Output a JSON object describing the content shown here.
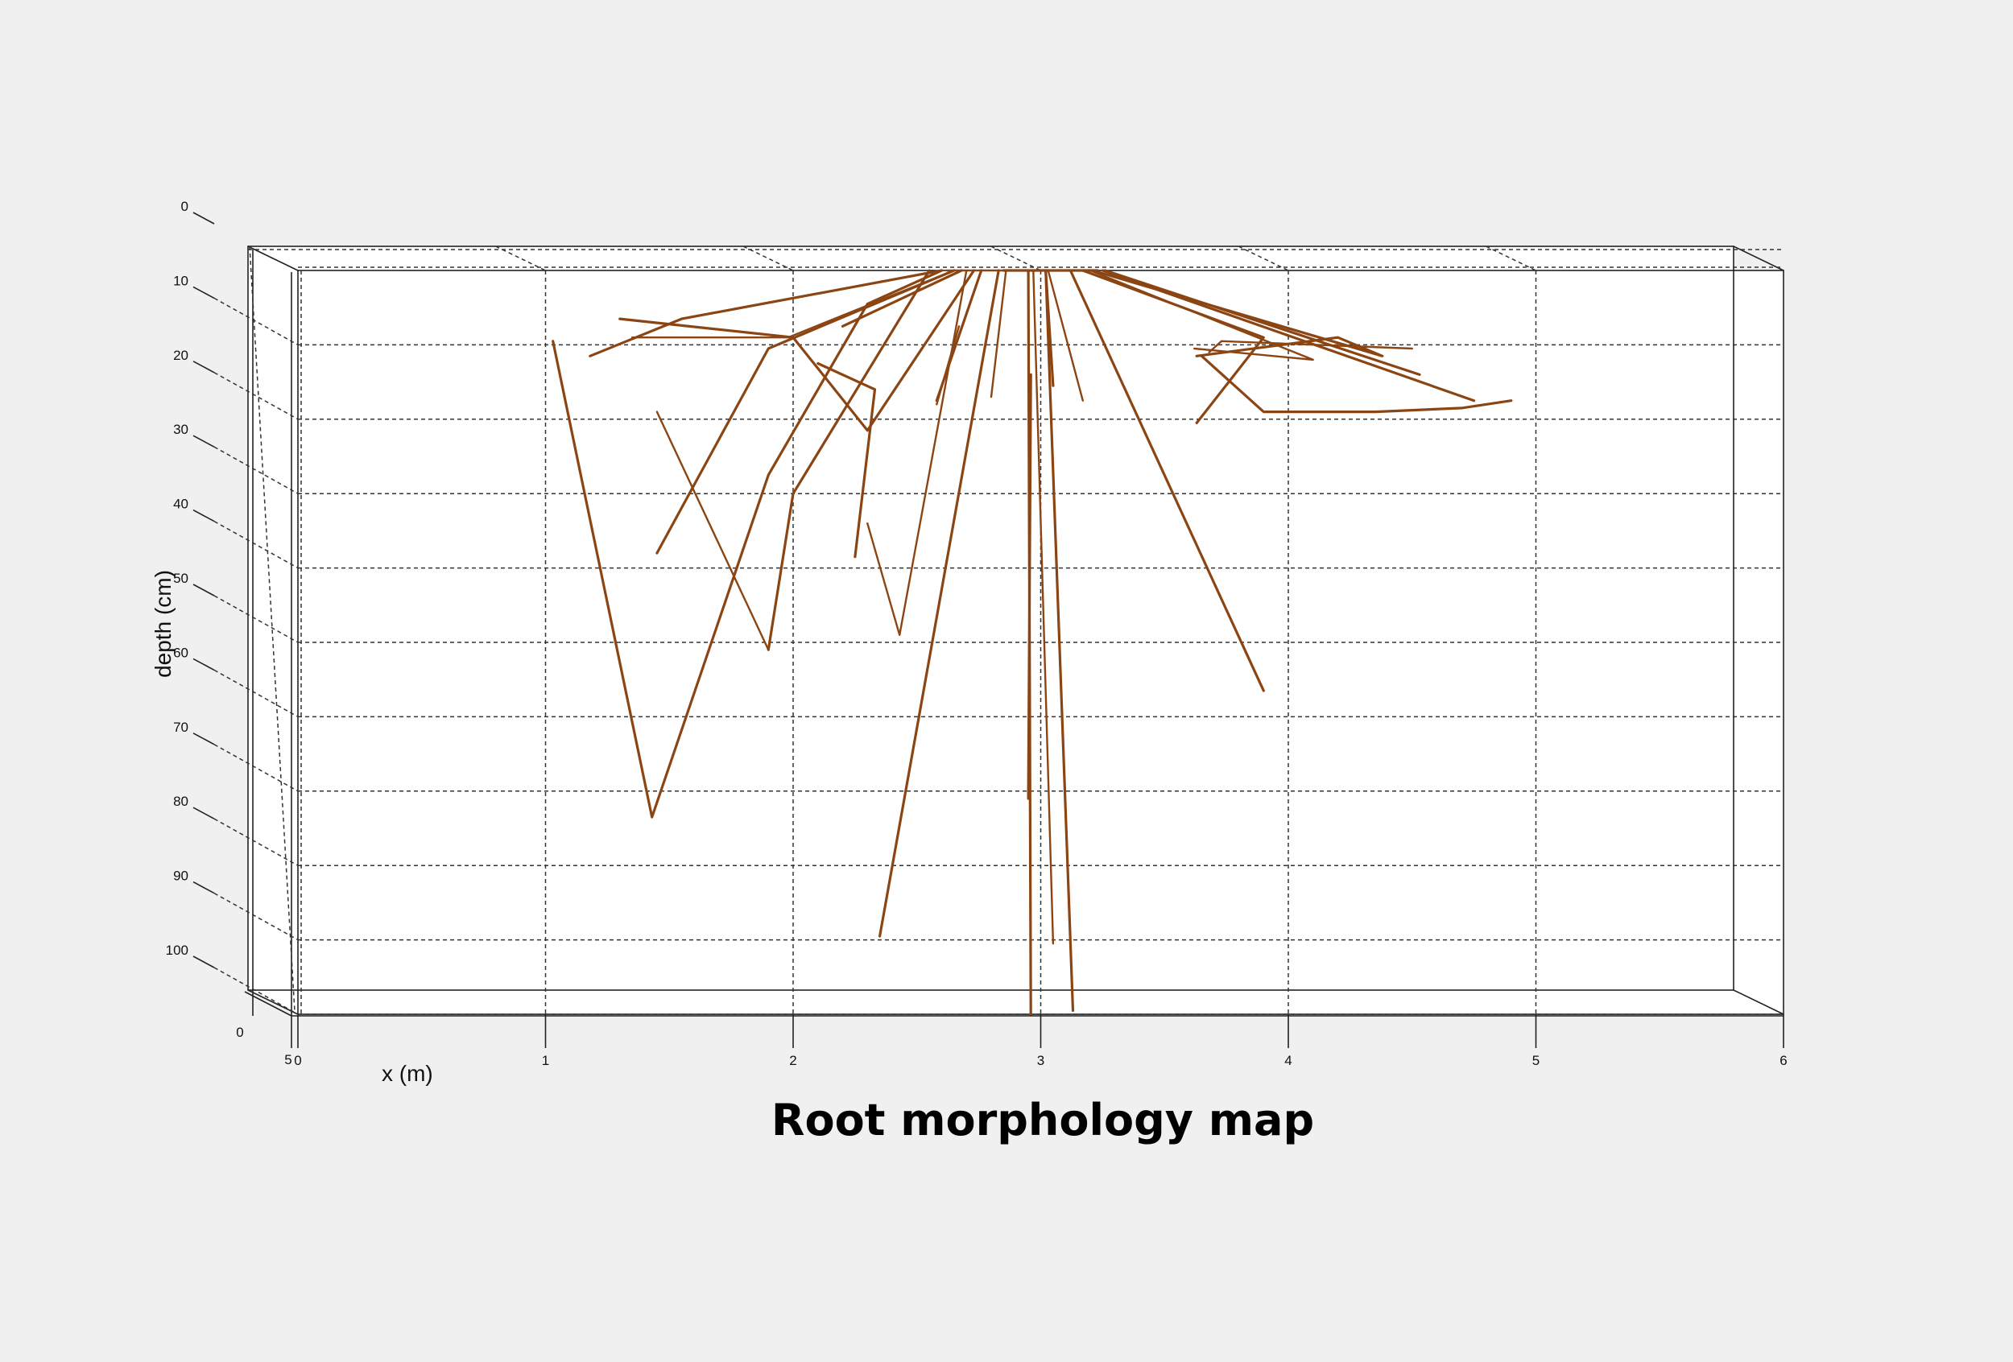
{
  "title": "Root morphology map",
  "chart_data": {
    "type": "line",
    "title": "Root morphology map",
    "xlabel": "x (m)",
    "ylabel": "depth (cm)",
    "xlim": [
      0,
      6
    ],
    "ylim": [
      0,
      100
    ],
    "y_inverted": true,
    "x_ticks": [
      "0",
      "1",
      "2",
      "3",
      "4",
      "5",
      "6"
    ],
    "y_ticks": [
      "0",
      "10",
      "20",
      "30",
      "40",
      "50",
      "60",
      "70",
      "80",
      "90",
      "100"
    ],
    "z_ticks": [
      "0",
      "5"
    ],
    "grid": true,
    "projection": "3d-box",
    "color": "#8b4513",
    "series": [
      {
        "points": [
          [
            1.03,
            9.5
          ],
          [
            1.43,
            73.5
          ],
          [
            1.9,
            27.5
          ],
          [
            2.3,
            4.5
          ],
          [
            2.6,
            0
          ]
        ]
      },
      {
        "points": [
          [
            1.45,
            19
          ],
          [
            1.9,
            51
          ]
        ]
      },
      {
        "points": [
          [
            1.9,
            51
          ],
          [
            2.0,
            30
          ],
          [
            2.55,
            0
          ]
        ]
      },
      {
        "points": [
          [
            1.45,
            38
          ],
          [
            1.9,
            10.5
          ],
          [
            2.65,
            0
          ]
        ]
      },
      {
        "points": [
          [
            2.3,
            34
          ],
          [
            2.43,
            49
          ],
          [
            2.7,
            0
          ]
        ]
      },
      {
        "points": [
          [
            1.3,
            6.5
          ],
          [
            2.0,
            9
          ],
          [
            2.3,
            21.5
          ],
          [
            2.73,
            0
          ]
        ]
      },
      {
        "points": [
          [
            1.18,
            11.5
          ],
          [
            1.55,
            6.5
          ],
          [
            2.6,
            0
          ]
        ]
      },
      {
        "points": [
          [
            1.35,
            9
          ],
          [
            1.98,
            9
          ],
          [
            2.65,
            0
          ]
        ]
      },
      {
        "points": [
          [
            2.1,
            12.5
          ],
          [
            2.33,
            16
          ],
          [
            2.25,
            38.5
          ]
        ]
      },
      {
        "points": [
          [
            2.2,
            7.5
          ],
          [
            2.68,
            0
          ]
        ]
      },
      {
        "points": [
          [
            2.58,
            18
          ],
          [
            2.67,
            7.5
          ]
        ]
      },
      {
        "points": [
          [
            2.58,
            17.5
          ],
          [
            2.76,
            0
          ]
        ]
      },
      {
        "points": [
          [
            2.35,
            89.5
          ],
          [
            2.83,
            0
          ]
        ]
      },
      {
        "points": [
          [
            2.8,
            17
          ],
          [
            2.86,
            0
          ]
        ]
      },
      {
        "points": [
          [
            2.96,
            100
          ],
          [
            2.95,
            0
          ]
        ]
      },
      {
        "points": [
          [
            2.95,
            71
          ],
          [
            2.96,
            14
          ]
        ]
      },
      {
        "points": [
          [
            3.05,
            90.5
          ],
          [
            2.97,
            0
          ]
        ]
      },
      {
        "points": [
          [
            3.13,
            99.5
          ],
          [
            3.02,
            0
          ]
        ]
      },
      {
        "points": [
          [
            3.05,
            15.5
          ],
          [
            3.02,
            0
          ]
        ]
      },
      {
        "points": [
          [
            3.17,
            17.5
          ],
          [
            3.03,
            0
          ]
        ]
      },
      {
        "points": [
          [
            3.9,
            56.5
          ],
          [
            3.12,
            0
          ]
        ]
      },
      {
        "points": [
          [
            3.63,
            20.5
          ],
          [
            3.9,
            9
          ],
          [
            3.17,
            0
          ]
        ]
      },
      {
        "points": [
          [
            3.62,
            10.5
          ],
          [
            4.1,
            12
          ],
          [
            3.2,
            0
          ]
        ]
      },
      {
        "points": [
          [
            3.63,
            11.5
          ],
          [
            4.2,
            9
          ],
          [
            4.38,
            11.5
          ],
          [
            3.21,
            0
          ]
        ]
      },
      {
        "points": [
          [
            4.53,
            14
          ],
          [
            3.26,
            0
          ]
        ]
      },
      {
        "points": [
          [
            4.5,
            10.5
          ],
          [
            3.73,
            9.5
          ],
          [
            3.68,
            11
          ]
        ]
      },
      {
        "points": [
          [
            4.75,
            17.5
          ],
          [
            3.25,
            0
          ]
        ]
      },
      {
        "points": [
          [
            4.9,
            17.5
          ],
          [
            4.7,
            18.5
          ],
          [
            4.35,
            19
          ],
          [
            3.9,
            19
          ],
          [
            3.65,
            11.5
          ]
        ]
      },
      {
        "points": [
          [
            2.62,
            0
          ],
          [
            2.85,
            0
          ]
        ]
      },
      {
        "points": [
          [
            2.85,
            0
          ],
          [
            3.23,
            0
          ]
        ]
      }
    ]
  }
}
